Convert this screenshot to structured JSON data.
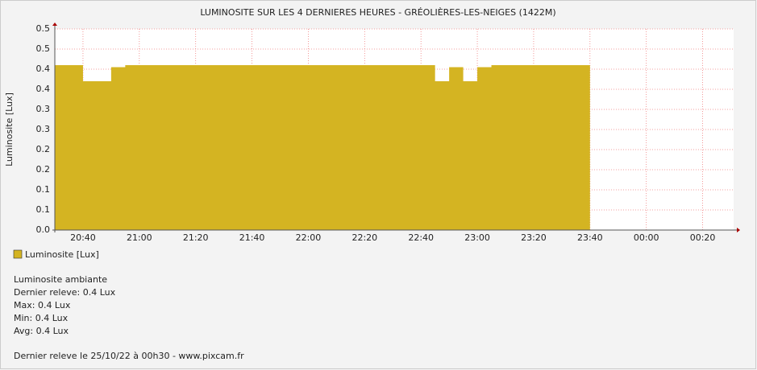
{
  "chart_data": {
    "type": "step-area",
    "title": "LUMINOSITE SUR LES 4 DERNIERES HEURES - GRÉOLIÈRES-LES-NEIGES (1422M)",
    "y_label": "Luminosite [Lux]",
    "x": [
      1230,
      1240,
      1250,
      1255,
      1365,
      1370,
      1375,
      1380,
      1385,
      1420
    ],
    "series": [
      {
        "name": "Luminosite [Lux]",
        "color": "#d4b422",
        "values": [
          0.41,
          0.37,
          0.405,
          0.41,
          0.37,
          0.405,
          0.37,
          0.405,
          0.41,
          0.41
        ]
      }
    ],
    "xlim": [
      1230,
      1471
    ],
    "xticks": [
      {
        "value": 1240,
        "label": "20:40"
      },
      {
        "value": 1260,
        "label": "21:00"
      },
      {
        "value": 1280,
        "label": "21:20"
      },
      {
        "value": 1300,
        "label": "21:40"
      },
      {
        "value": 1320,
        "label": "22:00"
      },
      {
        "value": 1340,
        "label": "22:20"
      },
      {
        "value": 1360,
        "label": "22:40"
      },
      {
        "value": 1380,
        "label": "23:00"
      },
      {
        "value": 1400,
        "label": "23:20"
      },
      {
        "value": 1420,
        "label": "23:40"
      },
      {
        "value": 1440,
        "label": "00:00"
      },
      {
        "value": 1460,
        "label": "00:20"
      }
    ],
    "ylim": [
      0,
      0.5
    ],
    "yticks": [
      {
        "value": 0,
        "label": "0.0"
      },
      {
        "value": 0.05,
        "label": "0.1"
      },
      {
        "value": 0.1,
        "label": "0.1"
      },
      {
        "value": 0.15,
        "label": "0.2"
      },
      {
        "value": 0.2,
        "label": "0.2"
      },
      {
        "value": 0.25,
        "label": "0.3"
      },
      {
        "value": 0.3,
        "label": "0.3"
      },
      {
        "value": 0.35,
        "label": "0.4"
      },
      {
        "value": 0.4,
        "label": "0.4"
      },
      {
        "value": 0.45,
        "label": "0.5"
      },
      {
        "value": 0.5,
        "label": "0.5"
      }
    ],
    "grid": true,
    "notes": [
      "Luminosite ambiante",
      "Dernier releve: 0.4 Lux",
      "Max: 0.4 Lux",
      "Min: 0.4 Lux",
      "Avg: 0.4 Lux"
    ],
    "footer": "Dernier releve le 25/10/22 à 00h30 - www.pixcam.fr"
  }
}
